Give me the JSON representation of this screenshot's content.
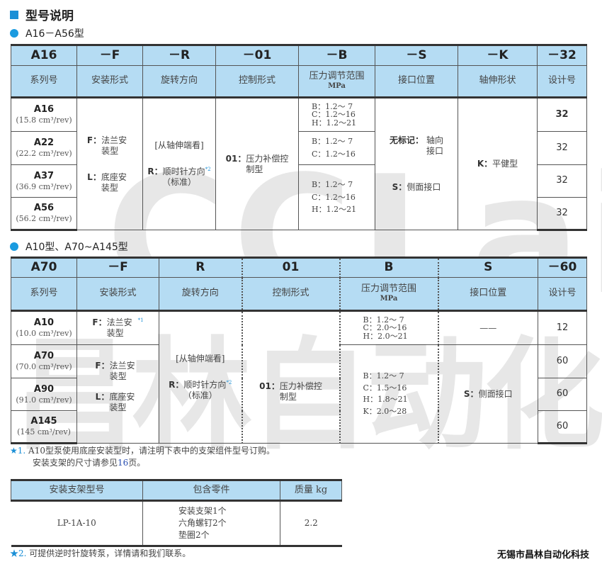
{
  "title": "型号说明",
  "section1": {
    "label": "A16－A56型",
    "codes": [
      "A16",
      "－F",
      "－R",
      "－01",
      "－B",
      "－S",
      "－K",
      "－32"
    ],
    "headers": [
      "系列号",
      "安装形式",
      "旋转方向",
      "控制形式",
      "压力调节范围",
      "接口位置",
      "轴伸形状",
      "设计号"
    ],
    "unit": "MPa",
    "models": [
      {
        "name": "A16",
        "disp": "(15.8 cm³/rev)"
      },
      {
        "name": "A22",
        "disp": "(22.2 cm³/rev)"
      },
      {
        "name": "A37",
        "disp": "(36.9 cm³/rev)"
      },
      {
        "name": "A56",
        "disp": "(56.2 cm³/rev)"
      }
    ],
    "mount": [
      {
        "code": "F：",
        "text": "法兰安装型"
      },
      {
        "code": "L：",
        "text": "底座安装型"
      }
    ],
    "rotation": {
      "view": "[从轴伸端看]",
      "code": "R：",
      "text": "顺时针方向",
      "std": "（标准）",
      "note": "*2"
    },
    "control": {
      "code": "01：",
      "text": "压力补偿控制型"
    },
    "pressure": [
      [
        "B：1.2～ 7",
        "C：1.2～16",
        "H：1.2～21"
      ],
      [
        "B：1.2～ 7",
        "C：1.2～16"
      ],
      [
        "B：1.2～ 7",
        "C：1.2～16",
        "H：1.2～21"
      ]
    ],
    "port": [
      {
        "code": "无标记：",
        "text": "轴向接口"
      },
      {
        "code": "S：",
        "text": "侧面接口"
      }
    ],
    "shaft": {
      "code": "K：",
      "text": "平健型"
    },
    "design": [
      "32",
      "32",
      "32",
      "32"
    ]
  },
  "section2": {
    "label": "A10型、A70~A145型",
    "codes": [
      "A70",
      "－F",
      "R",
      "01",
      "B",
      "S",
      "－60"
    ],
    "headers": [
      "系列号",
      "安装形式",
      "旋转方向",
      "控制形式",
      "压力调节范围",
      "接口位置",
      "设计号"
    ],
    "unit": "MPa",
    "models": [
      {
        "name": "A10",
        "disp": "(10.0 cm³/rev)"
      },
      {
        "name": "A70",
        "disp": "(70.0 cm³/rev)"
      },
      {
        "name": "A90",
        "disp": "(91.0 cm³/rev)"
      },
      {
        "name": "A145",
        "disp": "(145 cm³/rev)"
      }
    ],
    "mount_a10": {
      "code": "F：",
      "text": "法兰安装型",
      "note": "*1"
    },
    "mount": [
      {
        "code": "F：",
        "text": "法兰安装型"
      },
      {
        "code": "L：",
        "text": "底座安装型"
      }
    ],
    "rotation": {
      "view": "[从轴伸端看]",
      "code": "R：",
      "text": "顺时针方向",
      "std": "（标准）",
      "note": "*2"
    },
    "control": {
      "code": "01：",
      "text": "压力补偿控制型"
    },
    "pressure": [
      [
        "B：1.2～ 7",
        "C：2.0～16",
        "H：2.0～21"
      ],
      [
        "B：1.2～ 7",
        "C：1.5～16",
        "H：1.8～21",
        "K：2.0～28"
      ]
    ],
    "port": [
      {
        "text": "——"
      },
      {
        "code": "S：",
        "text": "侧面接口"
      }
    ],
    "design": [
      "12",
      "60",
      "60",
      "60"
    ]
  },
  "notes": {
    "n1_mark": "★1.",
    "n1_line1": "A10型泵使用底座安装型时，请注明下表中的支架组件型号订购。",
    "n1_line2a": "安装支架的尺寸请参见",
    "n1_page": "16",
    "n1_line2b": "页。",
    "n2_mark": "★2.",
    "n2_text": "可提供逆时针旋转泵，详情请和我们联系。"
  },
  "bracket": {
    "headers": [
      "安装支架型号",
      "包含零件",
      "质量 kg"
    ],
    "model": "LP-1A-10",
    "parts": [
      "安装支架1个",
      "六角螺钉2个",
      "垫圈2个"
    ],
    "mass": "2.2"
  },
  "company": "无锡市昌林自动化科技",
  "watermark": [
    "CCLair",
    "昌林自动化"
  ],
  "colors": {
    "header": "#b5dcf3",
    "accent": "#1a8fd6"
  }
}
